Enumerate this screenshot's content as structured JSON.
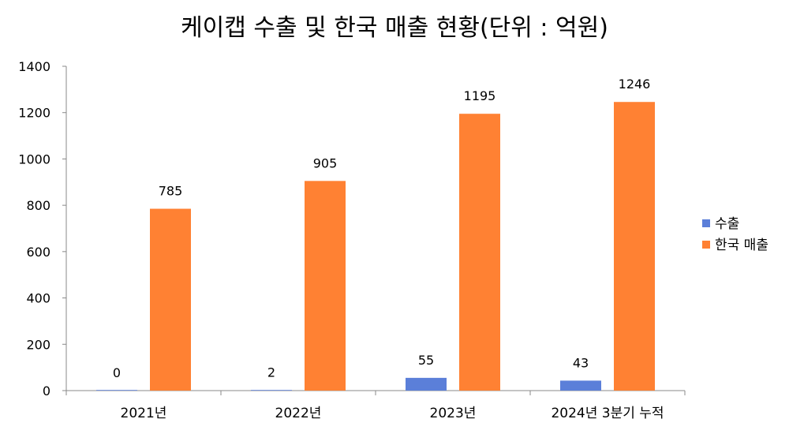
{
  "chart_data": {
    "type": "bar",
    "title": "케이캡 수출 및 한국 매출 현황(단위 : 억원)",
    "categories": [
      "2021년",
      "2022년",
      "2023년",
      "2024년 3분기 누적"
    ],
    "series": [
      {
        "name": "수출",
        "values": [
          0,
          2,
          55,
          43
        ],
        "color": "#5b7fd9"
      },
      {
        "name": "한국 매출",
        "values": [
          785,
          905,
          1195,
          1246
        ],
        "color": "#ff8133"
      }
    ],
    "ylim": [
      0,
      1400
    ],
    "yticks": [
      0,
      200,
      400,
      600,
      800,
      1000,
      1200,
      1400
    ],
    "grid": false,
    "legend": "right"
  }
}
